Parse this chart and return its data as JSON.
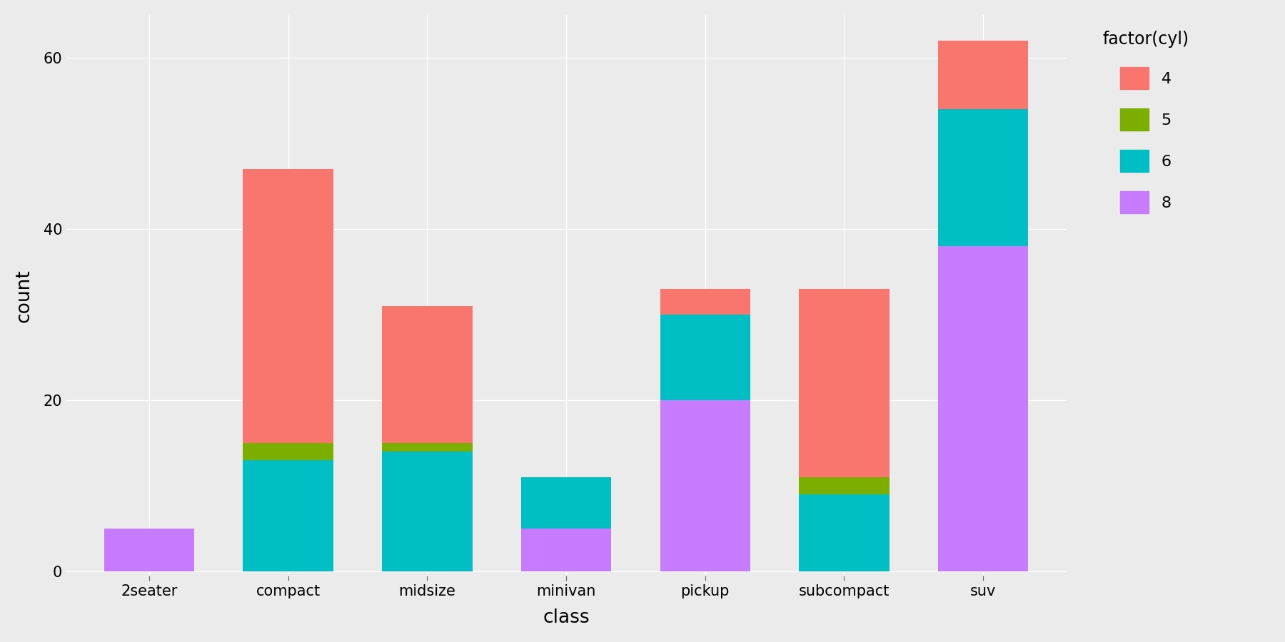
{
  "categories": [
    "2seater",
    "compact",
    "midsize",
    "minivan",
    "pickup",
    "subcompact",
    "suv"
  ],
  "cyl_8": [
    5,
    0,
    0,
    5,
    20,
    0,
    38
  ],
  "cyl_6": [
    0,
    13,
    14,
    6,
    10,
    9,
    16
  ],
  "cyl_5": [
    0,
    2,
    1,
    0,
    0,
    2,
    0
  ],
  "cyl_4": [
    0,
    32,
    16,
    0,
    3,
    22,
    8
  ],
  "colors": {
    "4": "#F8766D",
    "5": "#7CAE00",
    "6": "#00BFC4",
    "8": "#C77CFF"
  },
  "xlabel": "class",
  "ylabel": "count",
  "ylim": [
    -0.5,
    65
  ],
  "yticks": [
    0,
    20,
    40,
    60
  ],
  "legend_title": "factor(cyl)",
  "legend_labels": [
    "4",
    "5",
    "6",
    "8"
  ],
  "bg_color": "#EBEBEB",
  "grid_color": "#FFFFFF",
  "figsize": [
    18.0,
    9.0
  ]
}
